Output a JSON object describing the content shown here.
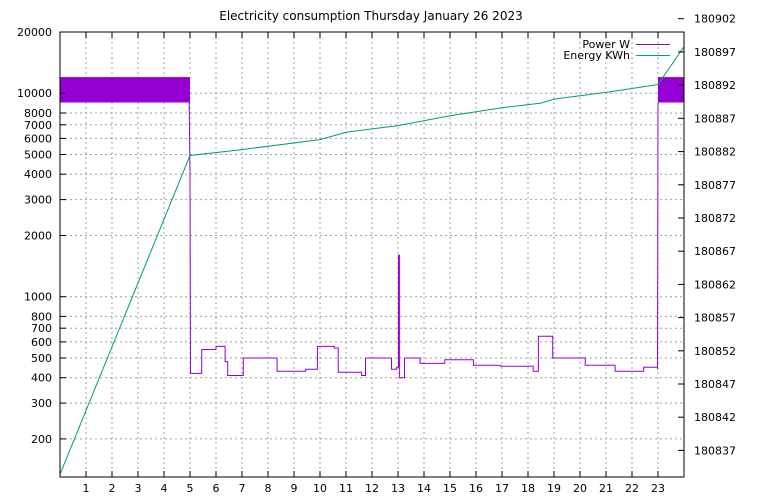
{
  "chart_data": {
    "type": "line",
    "title": "Electricity consumption Thursday January 26 2023",
    "xlabel": "",
    "ylabel": "",
    "y2label": "",
    "xlim": [
      0,
      24
    ],
    "xticks": [
      1,
      2,
      3,
      4,
      5,
      6,
      7,
      8,
      9,
      10,
      11,
      12,
      13,
      14,
      15,
      16,
      17,
      18,
      19,
      20,
      21,
      22,
      23
    ],
    "y_scale": "log",
    "ylim": [
      130,
      20000
    ],
    "yticks": [
      200,
      300,
      400,
      500,
      600,
      700,
      800,
      1000,
      2000,
      3000,
      4000,
      5000,
      6000,
      7000,
      8000,
      10000,
      20000
    ],
    "y2lim": [
      180833,
      180900
    ],
    "y2ticks": [
      180837,
      180842,
      180847,
      180852,
      180857,
      180862,
      180867,
      180872,
      180877,
      180882,
      180887,
      180892,
      180897,
      180902
    ],
    "grid": true,
    "legend_position": "top-right",
    "colors": {
      "power": "#9400d3",
      "energy": "#009e73"
    },
    "series": [
      {
        "name": "Power W",
        "axis": "left",
        "color": "#9400d3",
        "band": {
          "segments": [
            [
              0,
              5
            ],
            [
              23,
              24
            ]
          ],
          "low": 9000,
          "high": 12000
        },
        "points": [
          [
            4.97,
            9000
          ],
          [
            5.0,
            4000
          ],
          [
            5.02,
            420
          ],
          [
            5.45,
            420
          ],
          [
            5.45,
            550
          ],
          [
            6.0,
            550
          ],
          [
            6.0,
            570
          ],
          [
            6.35,
            570
          ],
          [
            6.35,
            480
          ],
          [
            6.45,
            480
          ],
          [
            6.45,
            410
          ],
          [
            7.05,
            410
          ],
          [
            7.05,
            500
          ],
          [
            8.35,
            500
          ],
          [
            8.35,
            430
          ],
          [
            9.45,
            430
          ],
          [
            9.45,
            440
          ],
          [
            9.9,
            440
          ],
          [
            9.9,
            570
          ],
          [
            10.55,
            570
          ],
          [
            10.55,
            560
          ],
          [
            10.7,
            560
          ],
          [
            10.7,
            425
          ],
          [
            11.6,
            425
          ],
          [
            11.6,
            410
          ],
          [
            11.75,
            410
          ],
          [
            11.75,
            500
          ],
          [
            12.75,
            500
          ],
          [
            12.75,
            440
          ],
          [
            12.95,
            440
          ],
          [
            12.95,
            450
          ],
          [
            13.02,
            450
          ],
          [
            13.02,
            1600
          ],
          [
            13.06,
            1600
          ],
          [
            13.06,
            400
          ],
          [
            13.25,
            400
          ],
          [
            13.25,
            500
          ],
          [
            13.85,
            500
          ],
          [
            13.85,
            470
          ],
          [
            14.8,
            470
          ],
          [
            14.8,
            490
          ],
          [
            15.9,
            490
          ],
          [
            15.9,
            460
          ],
          [
            16.95,
            460
          ],
          [
            16.95,
            455
          ],
          [
            18.2,
            455
          ],
          [
            18.2,
            430
          ],
          [
            18.4,
            430
          ],
          [
            18.4,
            640
          ],
          [
            18.95,
            640
          ],
          [
            18.95,
            500
          ],
          [
            20.2,
            500
          ],
          [
            20.2,
            460
          ],
          [
            21.35,
            460
          ],
          [
            21.35,
            430
          ],
          [
            22.45,
            430
          ],
          [
            22.45,
            450
          ],
          [
            22.98,
            450
          ],
          [
            22.98,
            440
          ],
          [
            23.0,
            9000
          ]
        ]
      },
      {
        "name": "Energy KWh",
        "axis": "right",
        "color": "#009e73",
        "points": [
          [
            0,
            180833.4
          ],
          [
            5,
            180881.4
          ],
          [
            7,
            180882.3
          ],
          [
            10,
            180883.8
          ],
          [
            11,
            180884.9
          ],
          [
            13,
            180885.9
          ],
          [
            15,
            180887.4
          ],
          [
            17,
            180888.6
          ],
          [
            18.5,
            180889.3
          ],
          [
            19,
            180889.9
          ],
          [
            21,
            180890.9
          ],
          [
            23,
            180892.1
          ],
          [
            24,
            180897.8
          ]
        ]
      }
    ]
  }
}
